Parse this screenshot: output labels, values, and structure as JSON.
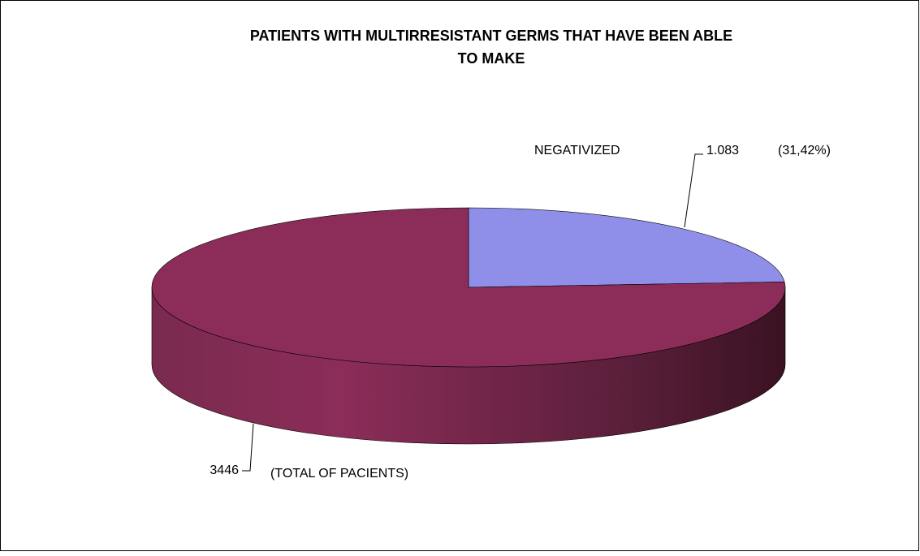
{
  "chart_data": {
    "type": "pie",
    "title": [
      "PATIENTS WITH MULTIRRESISTANT  GERMS THAT HAVE BEEN ABLE",
      "TO  MAKE"
    ],
    "categories": [
      "NEGATIVIZED",
      "(TOTAL OF PACIENTS)"
    ],
    "values": [
      1083,
      3446
    ],
    "value_labels": [
      "1.083",
      "3446"
    ],
    "colors": [
      "#8f8fea",
      "#8b2d58"
    ],
    "annotations": [
      "(31,42%)"
    ]
  }
}
